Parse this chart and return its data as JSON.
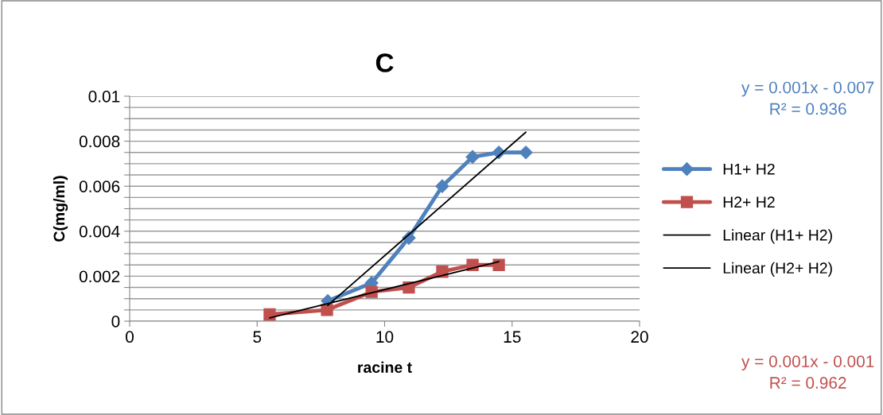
{
  "chart_data": {
    "type": "line",
    "title": "C",
    "xlabel": "racine t",
    "ylabel": "C(mg/ml)",
    "xlim": [
      0,
      20
    ],
    "xticks": [
      0,
      5,
      10,
      15,
      20
    ],
    "ylim": [
      0,
      0.01
    ],
    "yticks": [
      {
        "value": 0,
        "label": "0"
      },
      {
        "value": 0.0005,
        "label": null
      },
      {
        "value": 0.001,
        "label": null
      },
      {
        "value": 0.0015,
        "label": null
      },
      {
        "value": 0.002,
        "label": "0.002"
      },
      {
        "value": 0.0025,
        "label": null
      },
      {
        "value": 0.003,
        "label": null
      },
      {
        "value": 0.0035,
        "label": null
      },
      {
        "value": 0.004,
        "label": "0.004"
      },
      {
        "value": 0.0045,
        "label": null
      },
      {
        "value": 0.005,
        "label": null
      },
      {
        "value": 0.0055,
        "label": null
      },
      {
        "value": 0.006,
        "label": "0.006"
      },
      {
        "value": 0.0065,
        "label": null
      },
      {
        "value": 0.007,
        "label": null
      },
      {
        "value": 0.0075,
        "label": null
      },
      {
        "value": 0.008,
        "label": "0.008"
      },
      {
        "value": 0.0085,
        "label": null
      },
      {
        "value": 0.009,
        "label": null
      },
      {
        "value": 0.0095,
        "label": null
      },
      {
        "value": 0.01,
        "label": "0.01"
      }
    ],
    "grid": "y",
    "legend": "right",
    "series": [
      {
        "name": "H1+ H2",
        "color": "#4f81bd",
        "marker": "diamond",
        "x": [
          7.77,
          9.49,
          10.95,
          12.26,
          13.45,
          14.48,
          15.54
        ],
        "values": [
          0.0009,
          0.0017,
          0.0037,
          0.006,
          0.0073,
          0.0075,
          0.0075
        ]
      },
      {
        "name": "H2+ H2",
        "color": "#c0504d",
        "marker": "square",
        "x": [
          5.49,
          7.74,
          9.49,
          10.95,
          12.26,
          13.45,
          14.48
        ],
        "values": [
          0.0003,
          0.0005,
          0.0013,
          0.0015,
          0.0022,
          0.0025,
          0.0025
        ]
      },
      {
        "name": "Linear (H1+ H2)",
        "color": "#000000",
        "marker": "none",
        "x": [
          7.77,
          15.54
        ],
        "values": [
          0.0007,
          0.0084
        ]
      },
      {
        "name": "Linear (H2+ H2)",
        "color": "#000000",
        "marker": "none",
        "x": [
          5.49,
          14.48
        ],
        "values": [
          0.00015,
          0.00265
        ]
      }
    ],
    "annotations": [
      "y = 0.001x - 0.007\nR² = 0.936",
      "y = 0.001x - 0.001\nR² = 0.962"
    ]
  }
}
